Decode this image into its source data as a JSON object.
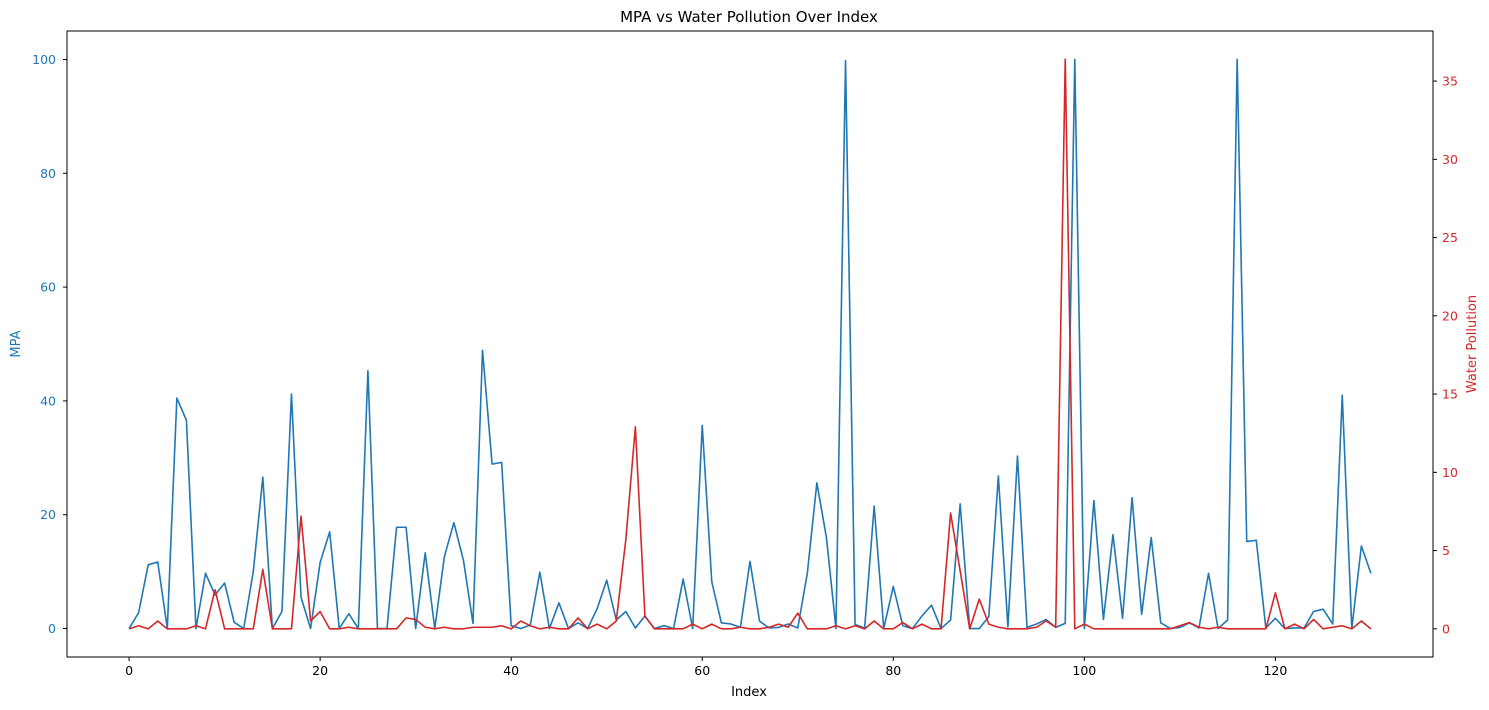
{
  "chart_data": {
    "type": "line",
    "title": "MPA vs Water Pollution Over Index",
    "xlabel": "Index",
    "ylabel_left": "MPA",
    "ylabel_right": "Water Pollution",
    "xlim": [
      -6.5,
      136.5
    ],
    "ylim_left": [
      -5,
      105
    ],
    "ylim_right": [
      -1.8,
      38.2
    ],
    "xticks": [
      0,
      20,
      40,
      60,
      80,
      100,
      120
    ],
    "yticks_left": [
      0,
      20,
      40,
      60,
      80,
      100
    ],
    "yticks_right": [
      0,
      5,
      10,
      15,
      20,
      25,
      30,
      35
    ],
    "grid": false,
    "colors": {
      "MPA": "#1f77b4",
      "Water Pollution": "#d62728"
    },
    "x": [
      0,
      1,
      2,
      3,
      4,
      5,
      6,
      7,
      8,
      9,
      10,
      11,
      12,
      13,
      14,
      15,
      16,
      17,
      18,
      19,
      20,
      21,
      22,
      23,
      24,
      25,
      26,
      27,
      28,
      29,
      30,
      31,
      32,
      33,
      34,
      35,
      36,
      37,
      38,
      39,
      40,
      41,
      42,
      43,
      44,
      45,
      46,
      47,
      48,
      49,
      50,
      51,
      52,
      53,
      54,
      55,
      56,
      57,
      58,
      59,
      60,
      61,
      62,
      63,
      64,
      65,
      66,
      67,
      68,
      69,
      70,
      71,
      72,
      73,
      74,
      75,
      76,
      77,
      78,
      79,
      80,
      81,
      82,
      83,
      84,
      85,
      86,
      87,
      88,
      89,
      90,
      91,
      92,
      93,
      94,
      95,
      96,
      97,
      98,
      99,
      100,
      101,
      102,
      103,
      104,
      105,
      106,
      107,
      108,
      109,
      110,
      111,
      112,
      113,
      114,
      115,
      116,
      117,
      118,
      119,
      120,
      121,
      122,
      123,
      124,
      125,
      126,
      127,
      128,
      129,
      130
    ],
    "series": [
      {
        "name": "MPA",
        "axis": "left",
        "values": [
          0,
          2.8,
          11.2,
          11.7,
          0,
          40.5,
          36.6,
          0,
          9.7,
          5.9,
          8.0,
          1.1,
          0,
          10.0,
          26.6,
          0,
          3.0,
          41.2,
          5.5,
          0,
          11.6,
          17.0,
          0,
          2.6,
          0,
          45.3,
          0,
          0,
          17.8,
          17.8,
          0,
          13.3,
          0,
          12.6,
          18.6,
          12.0,
          0.9,
          48.9,
          28.9,
          29.2,
          0.5,
          0,
          0.6,
          9.9,
          0,
          4.5,
          0,
          1.0,
          0,
          3.5,
          8.5,
          1.5,
          3.0,
          0.1,
          2.2,
          0,
          0.5,
          0,
          8.7,
          0,
          35.7,
          8.2,
          1.0,
          0.8,
          0.2,
          11.8,
          1.3,
          0.1,
          0.2,
          0.8,
          0.1,
          9.7,
          25.6,
          16.0,
          0,
          99.8,
          0.7,
          0.1,
          21.5,
          0,
          7.4,
          0.5,
          0,
          2.2,
          4.1,
          0,
          1.5,
          21.9,
          0,
          0,
          2.1,
          26.8,
          0.3,
          30.3,
          0.2,
          0.8,
          1.6,
          0.2,
          0.9,
          100,
          0,
          22.5,
          1.6,
          16.5,
          1.8,
          23.0,
          2.5,
          16.0,
          1.0,
          0,
          0.2,
          1.0,
          0.1,
          9.7,
          0,
          1.5,
          100,
          15.3,
          15.5,
          0.1,
          1.8,
          0,
          0.1,
          0.1,
          3.0,
          3.4,
          0.8,
          41.0,
          0,
          14.5,
          9.7
        ]
      },
      {
        "name": "Water Pollution",
        "axis": "right",
        "values": [
          0,
          0.2,
          0,
          0.5,
          0,
          0,
          0,
          0.2,
          0,
          2.5,
          0,
          0,
          0,
          0,
          3.8,
          0,
          0,
          0,
          7.2,
          0.5,
          1.1,
          0,
          0,
          0.1,
          0,
          0,
          0,
          0,
          0,
          0.7,
          0.6,
          0.1,
          0,
          0.1,
          0,
          0,
          0.1,
          0.1,
          0.1,
          0.2,
          0,
          0.5,
          0.2,
          0,
          0.1,
          0,
          0,
          0.7,
          0,
          0.3,
          0,
          0.5,
          5.7,
          12.9,
          0.8,
          0,
          0,
          0,
          0,
          0.3,
          0,
          0.3,
          0,
          0,
          0.1,
          0,
          0,
          0.1,
          0.3,
          0.1,
          1.0,
          0,
          0,
          0,
          0.2,
          0,
          0.2,
          0,
          0.5,
          0,
          0,
          0.4,
          0,
          0.3,
          0,
          0,
          7.4,
          3.7,
          0,
          1.9,
          0.3,
          0.1,
          0,
          0,
          0,
          0.1,
          0.5,
          0.1,
          36.4,
          0,
          0.3,
          0,
          0,
          0,
          0,
          0,
          0,
          0,
          0,
          0,
          0.2,
          0.4,
          0.1,
          0,
          0.1,
          0,
          0,
          0,
          0,
          0,
          2.3,
          0,
          0.3,
          0,
          0.6,
          0,
          0.1,
          0.2,
          0,
          0.5,
          0
        ]
      }
    ]
  }
}
